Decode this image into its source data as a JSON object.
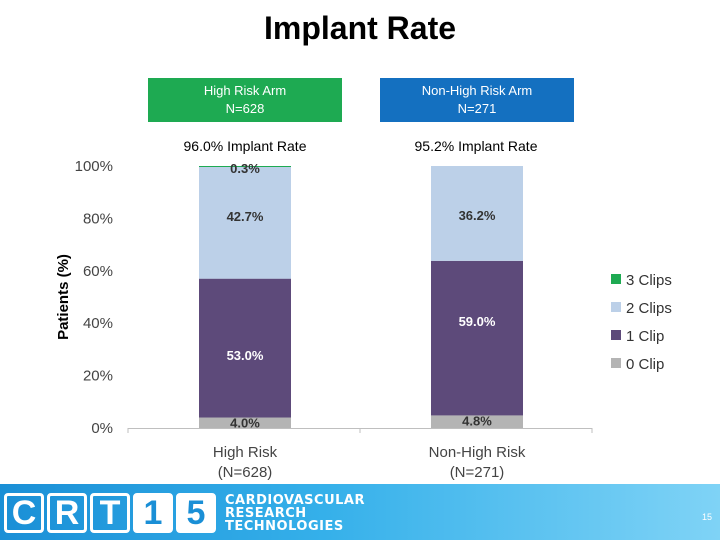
{
  "title": "Implant Rate",
  "arms": [
    {
      "name": "High Risk Arm",
      "n": "N=628",
      "rate": "96.0% Implant Rate"
    },
    {
      "name": "Non-High Risk Arm",
      "n": "N=271",
      "rate": "95.2% Implant Rate"
    }
  ],
  "chart_data": {
    "type": "bar",
    "stacked": true,
    "categories": [
      "High Risk",
      "Non-High Risk"
    ],
    "category_sublabels": [
      "(N=628)",
      "(N=271)"
    ],
    "ylabel": "Patients (%)",
    "ylim": [
      0,
      100
    ],
    "yticks": [
      "0%",
      "20%",
      "40%",
      "60%",
      "80%",
      "100%"
    ],
    "legend_position": "right",
    "series": [
      {
        "name": "0 Clip",
        "color": "#b4b4b4",
        "values": [
          4.0,
          4.8
        ],
        "labels": [
          "4.0%",
          "4.8%"
        ]
      },
      {
        "name": "1 Clip",
        "color": "#5d4a7a",
        "values": [
          53.0,
          59.0
        ],
        "labels": [
          "53.0%",
          "59.0%"
        ]
      },
      {
        "name": "2 Clips",
        "color": "#bcd0e8",
        "values": [
          42.7,
          36.2
        ],
        "labels": [
          "42.7%",
          "36.2%"
        ]
      },
      {
        "name": "3 Clips",
        "color": "#1eaa52",
        "values": [
          0.3,
          0.0
        ],
        "labels": [
          "0.3%",
          ""
        ]
      }
    ]
  },
  "footer": {
    "logo_letters": [
      "C",
      "R",
      "T",
      "1",
      "5"
    ],
    "logo_text": [
      "CARDIOVASCULAR",
      "RESEARCH",
      "TECHNOLOGIES"
    ],
    "page_number": "15"
  }
}
